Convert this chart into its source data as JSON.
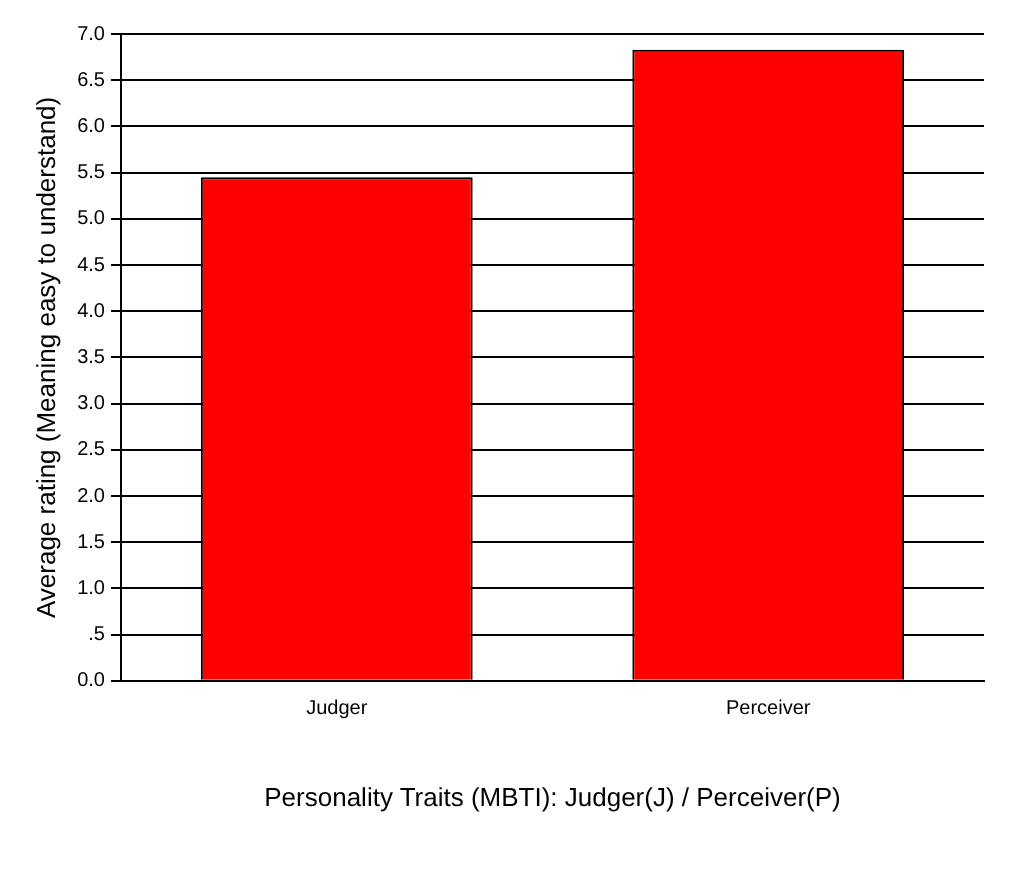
{
  "chart_data": {
    "type": "bar",
    "xlabel": "Personality Traits (MBTI): Judger(J) / Perceiver(P)",
    "ylabel": "Average rating (Meaning easy to understand)",
    "categories": [
      "Judger",
      "Perceiver"
    ],
    "values": [
      5.45,
      6.83
    ],
    "color": "#ff0000",
    "ylim": [
      0,
      7
    ],
    "yticks": [
      {
        "value": 0,
        "label": "0.0"
      },
      {
        "value": 0.5,
        "label": ".5"
      },
      {
        "value": 1,
        "label": "1.0"
      },
      {
        "value": 1.5,
        "label": "1.5"
      },
      {
        "value": 2,
        "label": "2.0"
      },
      {
        "value": 2.5,
        "label": "2.5"
      },
      {
        "value": 3,
        "label": "3.0"
      },
      {
        "value": 3.5,
        "label": "3.5"
      },
      {
        "value": 4,
        "label": "4.0"
      },
      {
        "value": 4.5,
        "label": "4.5"
      },
      {
        "value": 5,
        "label": "5.0"
      },
      {
        "value": 5.5,
        "label": "5.5"
      },
      {
        "value": 6,
        "label": "6.0"
      },
      {
        "value": 6.5,
        "label": "6.5"
      },
      {
        "value": 7,
        "label": "7.0"
      }
    ],
    "grid": "y"
  }
}
